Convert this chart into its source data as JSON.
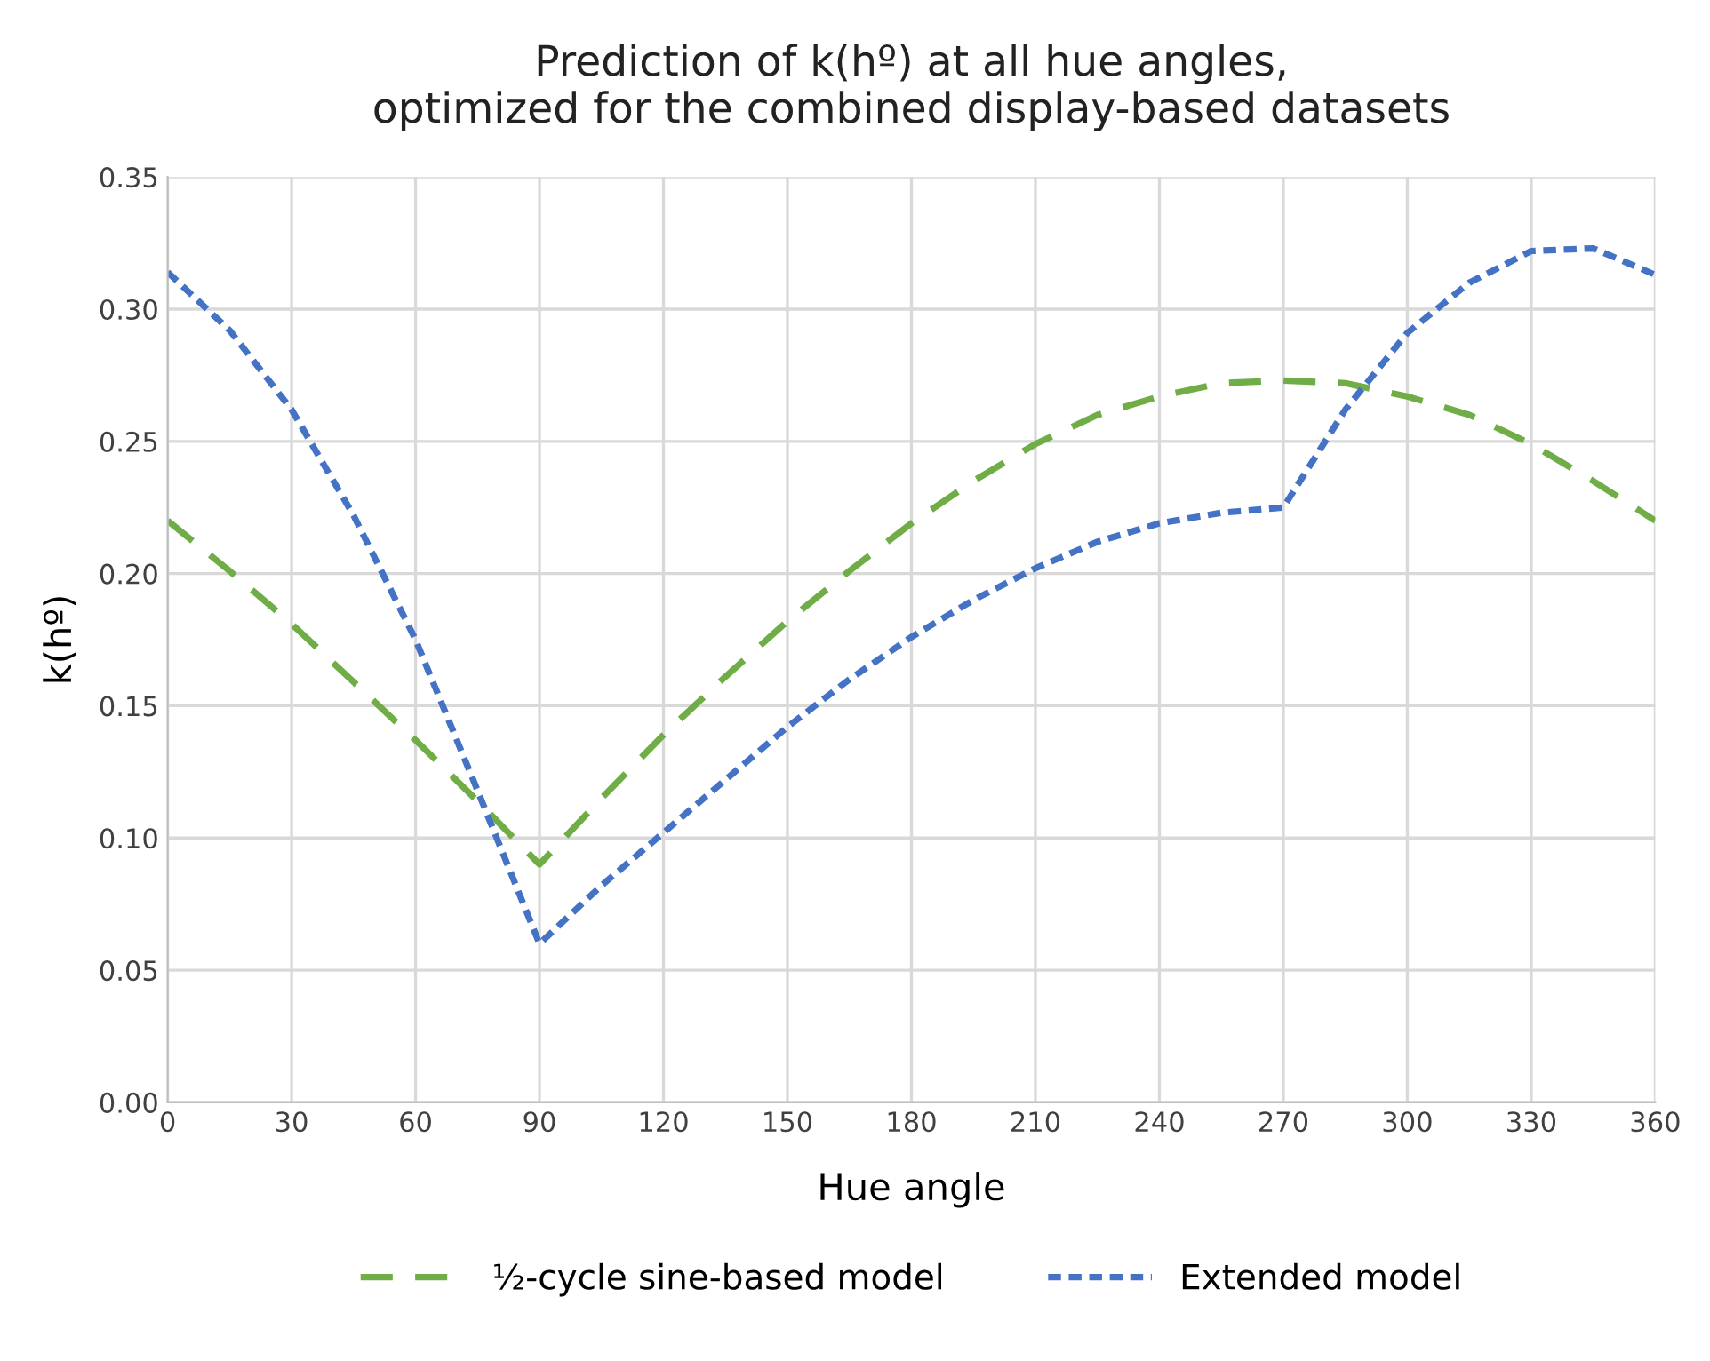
{
  "chart_data": {
    "type": "line",
    "title": "Prediction of k(hº) at all hue angles,\noptimized for the combined display-based datasets",
    "xlabel": "Hue angle",
    "ylabel": "k(hº)",
    "x": [
      0,
      15,
      30,
      45,
      60,
      75,
      90,
      105,
      120,
      135,
      150,
      165,
      180,
      195,
      210,
      225,
      240,
      255,
      270,
      285,
      300,
      315,
      330,
      345,
      360
    ],
    "series": [
      {
        "name": "½-cycle sine-based model",
        "color": "#70ad47",
        "line_style": "dashed",
        "values": [
          0.22,
          0.201,
          0.181,
          0.159,
          0.137,
          0.114,
          0.09,
          0.115,
          0.139,
          0.161,
          0.182,
          0.201,
          0.219,
          0.235,
          0.249,
          0.26,
          0.267,
          0.272,
          0.273,
          0.272,
          0.267,
          0.26,
          0.249,
          0.235,
          0.22
        ]
      },
      {
        "name": "Extended model",
        "color": "#4472c4",
        "line_style": "dotted",
        "values": [
          0.314,
          0.292,
          0.262,
          0.222,
          0.175,
          0.118,
          0.06,
          0.082,
          0.102,
          0.122,
          0.142,
          0.16,
          0.176,
          0.19,
          0.202,
          0.212,
          0.219,
          0.223,
          0.225,
          0.262,
          0.291,
          0.31,
          0.322,
          0.323,
          0.313
        ]
      }
    ],
    "xlim": [
      0,
      360
    ],
    "xticks": [
      0,
      30,
      60,
      90,
      120,
      150,
      180,
      210,
      240,
      270,
      300,
      330,
      360
    ],
    "ylim": [
      0,
      0.35
    ],
    "yticks": [
      {
        "value": 0,
        "label": "0.00"
      },
      {
        "value": 0.05,
        "label": "0.05"
      },
      {
        "value": 0.1,
        "label": "0.10"
      },
      {
        "value": 0.15,
        "label": "0.15"
      },
      {
        "value": 0.2,
        "label": "0.20"
      },
      {
        "value": 0.25,
        "label": "0.25"
      },
      {
        "value": 0.3,
        "label": "0.30"
      },
      {
        "value": 0.35,
        "label": "0.35"
      }
    ],
    "grid": true,
    "legend": "bottom",
    "marker": "none"
  }
}
